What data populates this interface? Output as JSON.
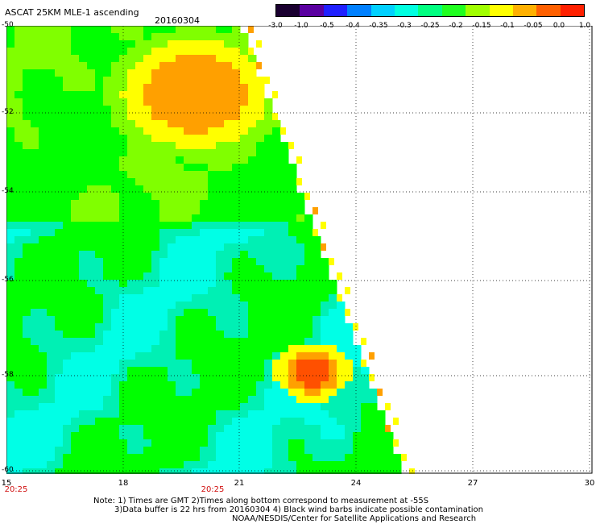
{
  "header": {
    "title": "ASCAT 25KM MLE-1 ascending",
    "date": "20160304"
  },
  "colorbar": {
    "labels": [
      "-3.0",
      "-1.0",
      "-0.5",
      "-0.4",
      "-0.35",
      "-0.3",
      "-0.25",
      "-0.2",
      "-0.15",
      "-0.1",
      "-0.05",
      "0.0",
      "1.0"
    ],
    "colors": [
      "#1a0030",
      "#5a00a0",
      "#2020ff",
      "#0080ff",
      "#00d0ff",
      "#00ffe0",
      "#00ff80",
      "#20ff20",
      "#a0ff00",
      "#ffff00",
      "#ffb000",
      "#ff6000",
      "#ff2000"
    ]
  },
  "map": {
    "lat_labels": [
      "-50",
      "-52",
      "-54",
      "-56",
      "-58",
      "-60"
    ],
    "lon_labels": [
      "15",
      "18",
      "21",
      "24",
      "27",
      "30"
    ],
    "time_labels": [
      "20:25",
      "20:25"
    ],
    "palette": {
      "cyan": "#00ffe6",
      "teal": "#00f0b4",
      "green": "#00ff00",
      "lgreen": "#80ff00",
      "yellow": "#ffff00",
      "orange": "#ffa000",
      "red": "#ff5000",
      "land": "#ffffff"
    }
  },
  "notes": {
    "line1": "Note: 1) Times are GMT 2)Times along bottom correspond to measurement at -55S",
    "line2": "3)Data buffer is 22 hrs from 20160304 4) Black wind barbs indicate possible contamination",
    "line3": "NOAA/NESDIS/Center for Satellite Applications and Research"
  }
}
